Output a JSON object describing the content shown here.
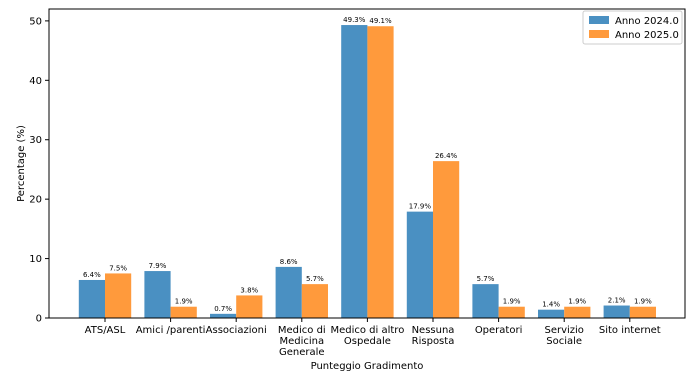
{
  "chart_data": {
    "type": "bar",
    "xlabel": "Punteggio Gradimento",
    "ylabel": "Percentage (%)",
    "ylim": [
      0,
      52
    ],
    "yticks": [
      0,
      10,
      20,
      30,
      40,
      50
    ],
    "grid": false,
    "legend_position": "top-right",
    "categories": [
      [
        "ATS/ASL"
      ],
      [
        "Amici /parenti"
      ],
      [
        "Associazioni"
      ],
      [
        "Medico di",
        "Medicina",
        "Generale"
      ],
      [
        "Medico di altro",
        "Ospedale"
      ],
      [
        "Nessuna",
        "Risposta"
      ],
      [
        "Operatori"
      ],
      [
        "Servizio",
        "Sociale"
      ],
      [
        "Sito internet"
      ]
    ],
    "series": [
      {
        "name": "Anno 2024.0",
        "color": "#4a90c2",
        "values": [
          6.4,
          7.9,
          0.7,
          8.6,
          49.3,
          17.9,
          5.7,
          1.4,
          2.1
        ],
        "labels": [
          "6.4%",
          "7.9%",
          "0.7%",
          "8.6%",
          "49.3%",
          "17.9%",
          "5.7%",
          "1.4%",
          "2.1%"
        ]
      },
      {
        "name": "Anno 2025.0",
        "color": "#ff9a3c",
        "values": [
          7.5,
          1.9,
          3.8,
          5.7,
          49.1,
          26.4,
          1.9,
          1.9,
          1.9
        ],
        "labels": [
          "7.5%",
          "1.9%",
          "3.8%",
          "5.7%",
          "49.1%",
          "26.4%",
          "1.9%",
          "1.9%",
          "1.9%"
        ]
      }
    ]
  }
}
